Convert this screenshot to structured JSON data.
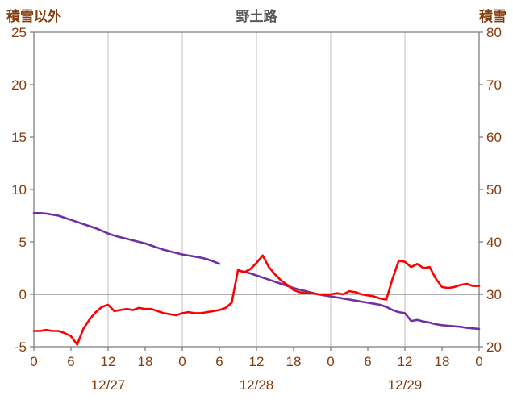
{
  "title": "野土路",
  "left_axis": {
    "label": "積雪以外",
    "min": -5,
    "max": 25,
    "ticks": [
      25,
      20,
      15,
      10,
      5,
      0,
      -5
    ]
  },
  "right_axis": {
    "label": "積雪",
    "min": 20,
    "max": 80,
    "ticks": [
      80,
      70,
      60,
      50,
      40,
      30,
      20
    ]
  },
  "x_axis": {
    "min": 0,
    "max": 72,
    "tick_hours": [
      0,
      6,
      12,
      18,
      24,
      30,
      36,
      42,
      48,
      54,
      60,
      66,
      72
    ],
    "hour_labels": [
      "0",
      "6",
      "12",
      "18",
      "0",
      "6",
      "12",
      "18",
      "0",
      "6",
      "12",
      "18",
      "0"
    ],
    "day_labels": [
      {
        "label": "12/27",
        "center_hour": 12
      },
      {
        "label": "12/28",
        "center_hour": 36
      },
      {
        "label": "12/29",
        "center_hour": 60
      }
    ],
    "grid_hours": [
      12,
      24,
      36,
      48,
      60
    ]
  },
  "chart_data": {
    "type": "line",
    "title": "野土路",
    "x_unit": "hour",
    "x_range": [
      0,
      72
    ],
    "grid": "vertical-only-plus-zero-line",
    "legend": "none",
    "colors": {
      "red_series": "#ff0000",
      "purple_series": "#7030a0",
      "axis_text": "#843c0c",
      "grid": "#bfbfbf",
      "border": "#808080",
      "zero_line": "#808080"
    },
    "series": [
      {
        "name": "red-series-left-axis",
        "axis": "left",
        "color": "#ff0000",
        "values": [
          -3.5,
          -3.5,
          -3.4,
          -3.5,
          -3.5,
          -3.7,
          -4.0,
          -4.8,
          -3.3,
          -2.4,
          -1.7,
          -1.2,
          -1.0,
          -1.6,
          -1.5,
          -1.4,
          -1.5,
          -1.3,
          -1.4,
          -1.4,
          -1.6,
          -1.8,
          -1.9,
          -2.0,
          -1.8,
          -1.7,
          -1.8,
          -1.8,
          -1.7,
          -1.6,
          -1.5,
          -1.3,
          -0.8,
          2.3,
          2.1,
          2.4,
          3.0,
          3.7,
          2.6,
          1.9,
          1.3,
          0.9,
          0.4,
          0.2,
          0.1,
          0.1,
          0.0,
          0.0,
          0.0,
          0.1,
          0.0,
          0.3,
          0.2,
          0.0,
          -0.1,
          -0.2,
          -0.4,
          -0.5,
          1.5,
          3.2,
          3.1,
          2.6,
          2.9,
          2.5,
          2.6,
          1.5,
          0.7,
          0.6,
          0.7,
          0.9,
          1.0,
          0.8,
          0.8
        ]
      },
      {
        "name": "purple-series-right-axis",
        "axis": "right",
        "color": "#7030a0",
        "values": [
          45.5,
          45.5,
          45.4,
          45.2,
          45.0,
          44.6,
          44.2,
          43.8,
          43.4,
          43.0,
          42.6,
          42.1,
          41.6,
          41.2,
          40.9,
          40.6,
          40.3,
          40.0,
          39.7,
          39.3,
          38.9,
          38.5,
          38.2,
          37.9,
          37.6,
          37.4,
          37.2,
          37.0,
          36.7,
          36.3,
          35.8,
          null,
          null,
          34.6,
          34.3,
          34.0,
          33.6,
          33.2,
          32.8,
          32.4,
          32.0,
          31.6,
          31.2,
          30.9,
          30.6,
          30.3,
          30.0,
          29.8,
          29.6,
          29.4,
          29.2,
          29.0,
          28.8,
          28.6,
          28.4,
          28.2,
          28.0,
          27.6,
          27.0,
          26.6,
          26.4,
          24.9,
          25.1,
          24.8,
          24.6,
          24.3,
          24.1,
          24.0,
          23.9,
          23.8,
          23.6,
          23.5,
          23.4
        ]
      }
    ]
  }
}
